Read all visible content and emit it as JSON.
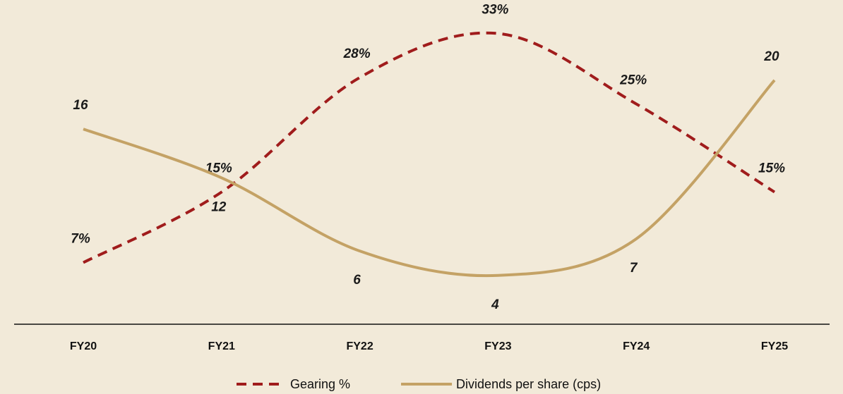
{
  "chart_data": {
    "type": "line",
    "categories": [
      "FY20",
      "FY21",
      "FY22",
      "FY23",
      "FY24",
      "FY25"
    ],
    "series": [
      {
        "name": "Gearing %",
        "color": "#a01c1c",
        "dash": true,
        "values": [
          7,
          15,
          28,
          33,
          25,
          15
        ],
        "value_labels": [
          "7%",
          "15%",
          "28%",
          "33%",
          "25%",
          "15%"
        ]
      },
      {
        "name": "Dividends per share (cps)",
        "color": "#c4a265",
        "axis": "y2",
        "values": [
          16,
          12,
          6,
          4,
          7,
          20
        ]
      }
    ],
    "ylim": [
      0,
      36
    ],
    "y2lim": [
      0,
      26
    ],
    "legend": "bottom"
  }
}
